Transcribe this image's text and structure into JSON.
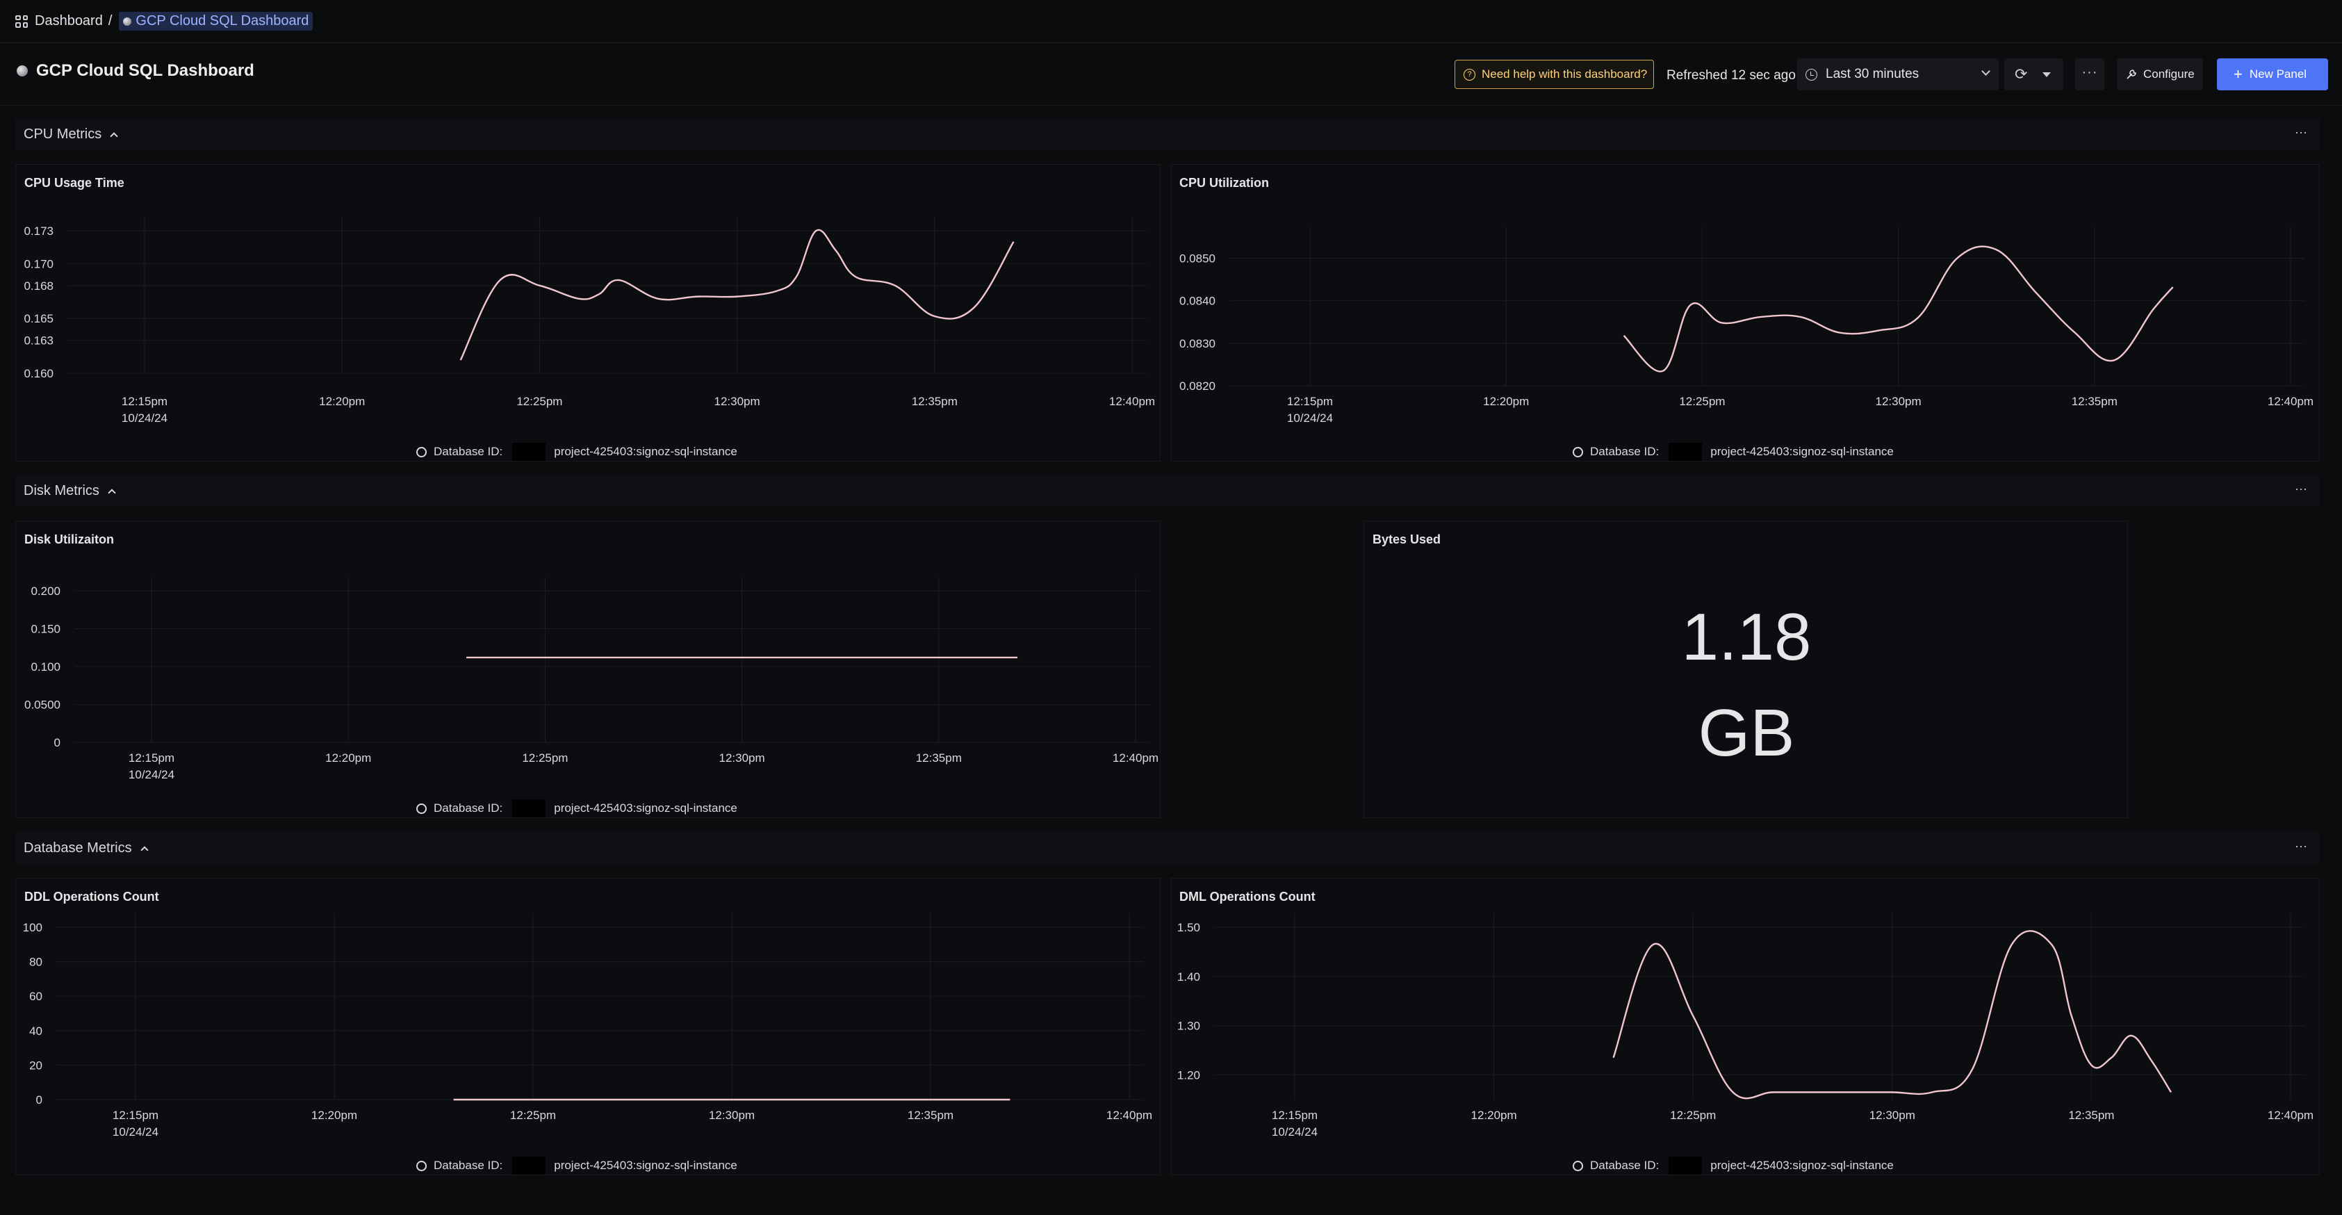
{
  "breadcrumb": {
    "root": "Dashboard",
    "separator": "/",
    "current": "GCP Cloud SQL Dashboard"
  },
  "header": {
    "title": "GCP Cloud SQL Dashboard",
    "help_label": "Need help with this dashboard?",
    "refreshed": "Refreshed 12 sec ago",
    "time_range": "Last 30 minutes",
    "more_label": "···",
    "configure_label": "Configure",
    "new_panel_label": "New Panel"
  },
  "sections": [
    {
      "label": "CPU Metrics",
      "menu": "···"
    },
    {
      "label": "Disk Metrics",
      "menu": "···"
    },
    {
      "label": "Database Metrics",
      "menu": "···"
    }
  ],
  "legend": {
    "prefix": "Database ID:",
    "suffix": "project-425403:signoz-sql-instance"
  },
  "x_ticks": [
    "12:15pm",
    "12:20pm",
    "12:25pm",
    "12:30pm",
    "12:35pm",
    "12:40pm"
  ],
  "x_date": "10/24/24",
  "panels": {
    "cpu_usage": {
      "title": "CPU Usage Time"
    },
    "cpu_util": {
      "title": "CPU Utilization"
    },
    "disk_util": {
      "title": "Disk Utilizaiton"
    },
    "bytes_used": {
      "title": "Bytes Used",
      "value": "1.18",
      "unit": "GB"
    },
    "ddl_ops": {
      "title": "DDL Operations Count"
    },
    "dml_ops": {
      "title": "DML Operations Count"
    }
  },
  "colors": {
    "series": "#f2c6cf",
    "accent": "#4e74f8",
    "warning": "#ffd27a",
    "background": "#0b0c0e"
  },
  "chart_data": [
    {
      "id": "cpu_usage",
      "type": "line",
      "title": "CPU Usage Time",
      "y_ticks": [
        "0.173",
        "0.170",
        "0.168",
        "0.165",
        "0.163",
        "0.160"
      ],
      "y_tick_values": [
        0.173,
        0.17,
        0.168,
        0.165,
        0.163,
        0.16
      ],
      "ylim": [
        0.16,
        0.173
      ],
      "series": [
        {
          "name": "Database ID: project-425403:signoz-sql-instance",
          "x": [
            23,
            24,
            25,
            26,
            26.5,
            27,
            28,
            29,
            30,
            31,
            31.5,
            32,
            32.5,
            33,
            34,
            35,
            36,
            37
          ],
          "y": [
            0.1612,
            0.1685,
            0.168,
            0.1668,
            0.1672,
            0.1685,
            0.1668,
            0.167,
            0.167,
            0.1675,
            0.1688,
            0.173,
            0.1712,
            0.1688,
            0.168,
            0.1652,
            0.166,
            0.172
          ]
        }
      ]
    },
    {
      "id": "cpu_util",
      "type": "line",
      "title": "CPU Utilization",
      "y_ticks": [
        "0.0850",
        "0.0840",
        "0.0830",
        "0.0820"
      ],
      "y_tick_values": [
        0.085,
        0.084,
        0.083,
        0.082
      ],
      "ylim": [
        0.082,
        0.0854
      ],
      "series": [
        {
          "name": "Database ID: project-425403:signoz-sql-instance",
          "x": [
            23,
            24,
            24.7,
            25.5,
            26.5,
            27.5,
            28.5,
            29.5,
            30.5,
            31.5,
            32.5,
            33.5,
            34.5,
            35.5,
            36.5,
            37
          ],
          "y": [
            0.08318,
            0.08235,
            0.0839,
            0.08348,
            0.08362,
            0.08362,
            0.08325,
            0.0833,
            0.0836,
            0.085,
            0.0852,
            0.0842,
            0.08325,
            0.0826,
            0.0838,
            0.08432
          ]
        }
      ]
    },
    {
      "id": "disk_util",
      "type": "line",
      "title": "Disk Utilizaiton",
      "y_ticks": [
        "0.200",
        "0.150",
        "0.100",
        "0.0500",
        "0"
      ],
      "y_tick_values": [
        0.2,
        0.15,
        0.1,
        0.05,
        0
      ],
      "ylim": [
        0,
        0.2
      ],
      "series": [
        {
          "name": "Database ID: project-425403:signoz-sql-instance",
          "x": [
            23,
            37
          ],
          "y": [
            0.112,
            0.112
          ]
        }
      ]
    },
    {
      "id": "ddl_ops",
      "type": "line",
      "title": "DDL Operations Count",
      "y_ticks": [
        "100",
        "80",
        "60",
        "40",
        "20",
        "0"
      ],
      "y_tick_values": [
        100,
        80,
        60,
        40,
        20,
        0
      ],
      "ylim": [
        0,
        100
      ],
      "series": [
        {
          "name": "Database ID: project-425403:signoz-sql-instance",
          "x": [
            23,
            37
          ],
          "y": [
            0,
            0
          ]
        }
      ]
    },
    {
      "id": "dml_ops",
      "type": "line",
      "title": "DML Operations Count",
      "y_ticks": [
        "1.50",
        "1.40",
        "1.30",
        "1.20"
      ],
      "y_tick_values": [
        1.5,
        1.4,
        1.3,
        1.2
      ],
      "ylim": [
        1.15,
        1.5
      ],
      "series": [
        {
          "name": "Database ID: project-425403:signoz-sql-instance",
          "x": [
            23,
            24,
            25,
            26,
            27,
            28,
            29,
            30,
            31,
            32,
            33,
            34,
            34.5,
            35,
            35.5,
            36,
            36.5,
            37
          ],
          "y": [
            1.235,
            1.465,
            1.32,
            1.165,
            1.165,
            1.165,
            1.165,
            1.165,
            1.165,
            1.21,
            1.465,
            1.465,
            1.32,
            1.22,
            1.235,
            1.28,
            1.23,
            1.165
          ]
        }
      ]
    }
  ]
}
